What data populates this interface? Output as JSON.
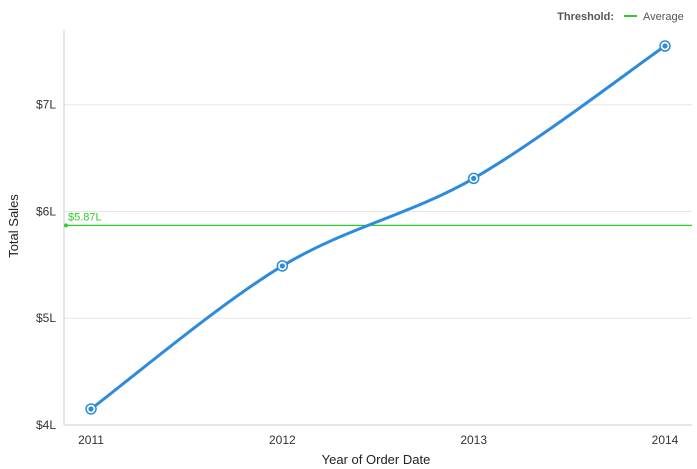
{
  "legend": {
    "title": "Threshold:",
    "items": [
      {
        "label": "Average",
        "color": "#2ecc2e"
      }
    ]
  },
  "chart_data": {
    "type": "line",
    "categories": [
      "2011",
      "2012",
      "2013",
      "2014"
    ],
    "series": [
      {
        "values": [
          4.15,
          5.49,
          6.31,
          7.55
        ],
        "color": "#2e8bdc"
      }
    ],
    "threshold": {
      "name": "Average",
      "value": 5.87,
      "label": "$5.87L",
      "color": "#2ecc2e"
    },
    "xlabel": "Year of Order Date",
    "ylabel": "Total Sales",
    "ylim": [
      4.0,
      7.7
    ],
    "yticks": [
      {
        "value": 4,
        "label": "$4L"
      },
      {
        "value": 5,
        "label": "$5L"
      },
      {
        "value": 6,
        "label": "$6L"
      },
      {
        "value": 7,
        "label": "$7L"
      }
    ],
    "grid": true,
    "legend_position": "top-right"
  }
}
